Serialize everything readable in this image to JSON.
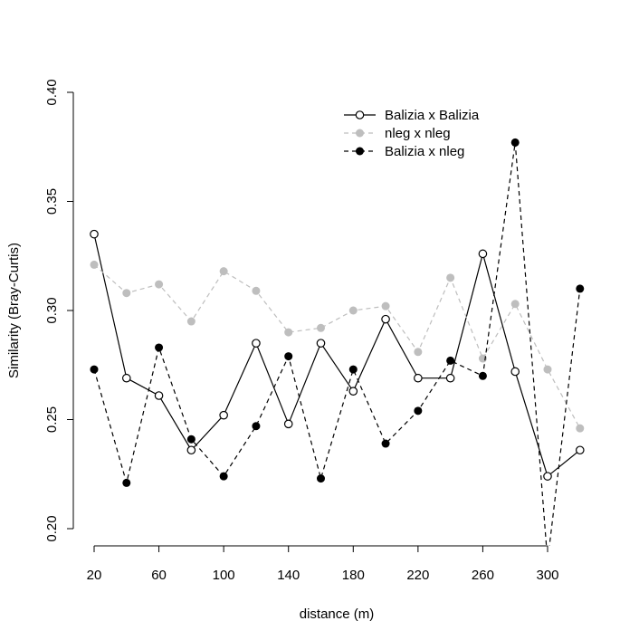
{
  "chart_data": {
    "type": "line",
    "title": "",
    "xlabel": "distance (m)",
    "ylabel": "Similarity (Bray-Curtis)",
    "xlim": [
      20,
      320
    ],
    "ylim": [
      0.2,
      0.4
    ],
    "x": [
      20,
      40,
      60,
      80,
      100,
      120,
      140,
      160,
      180,
      200,
      220,
      240,
      260,
      280,
      300,
      320
    ],
    "xticks": [
      "20",
      "60",
      "100",
      "140",
      "180",
      "220",
      "260",
      "300"
    ],
    "xtick_values": [
      20,
      60,
      100,
      140,
      180,
      220,
      260,
      300
    ],
    "yticks": [
      "0.20",
      "0.25",
      "0.30",
      "0.35",
      "0.40"
    ],
    "ytick_values": [
      0.2,
      0.25,
      0.3,
      0.35,
      0.4
    ],
    "legend_position": "top-right",
    "series": [
      {
        "name": "Balizia x Balizia",
        "color": "#000000",
        "marker": "open-circle",
        "line": "solid",
        "values": [
          0.335,
          0.269,
          0.261,
          0.236,
          0.252,
          0.285,
          0.248,
          0.285,
          0.263,
          0.296,
          0.269,
          0.269,
          0.326,
          0.272,
          0.224,
          0.236
        ]
      },
      {
        "name": "nleg x nleg",
        "color": "#bebebe",
        "marker": "filled-circle",
        "line": "dashed",
        "values": [
          0.321,
          0.308,
          0.312,
          0.295,
          0.318,
          0.309,
          0.29,
          0.292,
          0.3,
          0.302,
          0.281,
          0.315,
          0.278,
          0.303,
          0.273,
          0.246
        ]
      },
      {
        "name": "Balizia x nleg",
        "color": "#000000",
        "marker": "filled-circle",
        "line": "dashed",
        "values": [
          0.273,
          0.221,
          0.283,
          0.241,
          0.224,
          0.247,
          0.279,
          0.223,
          0.273,
          0.239,
          0.254,
          0.277,
          0.27,
          0.377,
          0.185,
          0.31
        ]
      }
    ]
  }
}
